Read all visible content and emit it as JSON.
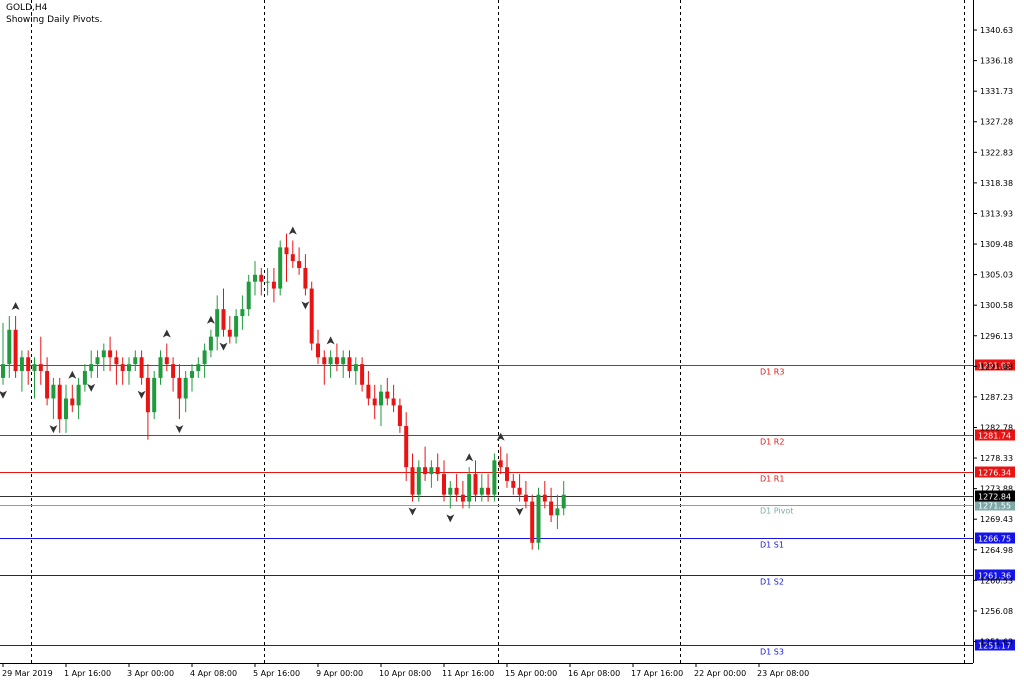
{
  "header": {
    "symbol_line": "GOLD,H4",
    "info_line": "Showing Daily Pivots."
  },
  "colors": {
    "bull": "#1f9a3c",
    "bear": "#e81414",
    "resistance": "#e81414",
    "support": "#1414e8",
    "pivot": "#7fa9a9",
    "price_line": "#333333",
    "grid": "#000000",
    "axis_text": "#000000"
  },
  "chart_data": {
    "type": "candlestick",
    "title": "",
    "symbol": "GOLD,H4",
    "ylim": [
      1248.5,
      1345.0
    ],
    "y_ticks": [
      "1340.63",
      "1336.18",
      "1331.73",
      "1327.28",
      "1322.83",
      "1318.38",
      "1313.93",
      "1309.48",
      "1305.03",
      "1300.58",
      "1296.13",
      "1291.68",
      "1287.23",
      "1282.78",
      "1278.33",
      "1273.88",
      "1269.43",
      "1264.98",
      "1260.53",
      "1256.08",
      "1251.63"
    ],
    "x_labels": [
      {
        "label": "29 Mar 2019",
        "bar": 0
      },
      {
        "label": "1 Apr 16:00",
        "bar": 10
      },
      {
        "label": "3 Apr 00:00",
        "bar": 20
      },
      {
        "label": "4 Apr 08:00",
        "bar": 30
      },
      {
        "label": "5 Apr 16:00",
        "bar": 40
      },
      {
        "label": "9 Apr 00:00",
        "bar": 50
      },
      {
        "label": "10 Apr 08:00",
        "bar": 60
      },
      {
        "label": "11 Apr 16:00",
        "bar": 70
      },
      {
        "label": "15 Apr 00:00",
        "bar": 80
      },
      {
        "label": "16 Apr 08:00",
        "bar": 90
      },
      {
        "label": "17 Apr 16:00",
        "bar": 100
      },
      {
        "label": "22 Apr 00:00",
        "bar": 110
      },
      {
        "label": "23 Apr 08:00",
        "bar": 120
      }
    ],
    "day_separators": [
      4.5,
      41.5,
      78.5,
      107.5,
      152.5
    ],
    "pivot_levels": [
      {
        "name": "D1 R3",
        "value": 1291.93,
        "label": "1291.93",
        "kind": "resistance"
      },
      {
        "name": "D1 R2",
        "value": 1281.74,
        "label": "1281.74",
        "kind": "resistance"
      },
      {
        "name": "D1 R1",
        "value": 1276.34,
        "label": "1276.34",
        "kind": "resistance"
      },
      {
        "name": "D1 Pivot",
        "value": 1271.55,
        "label": "1271.55",
        "kind": "pivot"
      },
      {
        "name": "D1 S1",
        "value": 1266.75,
        "label": "1266.75",
        "kind": "support"
      },
      {
        "name": "D1 S2",
        "value": 1261.36,
        "label": "1261.36",
        "kind": "support"
      },
      {
        "name": "D1 S3",
        "value": 1251.17,
        "label": "1251.17",
        "kind": "support"
      }
    ],
    "current_price": {
      "value": 1272.84,
      "label": "1272.84"
    },
    "candles": [
      [
        1290,
        1298,
        1289,
        1292
      ],
      [
        1292,
        1299,
        1290,
        1297
      ],
      [
        1297,
        1299,
        1290,
        1291
      ],
      [
        1291,
        1294,
        1288,
        1293
      ],
      [
        1293,
        1294,
        1289,
        1291
      ],
      [
        1291,
        1293,
        1287,
        1292
      ],
      [
        1292,
        1296,
        1289,
        1291
      ],
      [
        1291,
        1293,
        1286,
        1287
      ],
      [
        1287,
        1290,
        1284,
        1289
      ],
      [
        1289,
        1290,
        1282,
        1284
      ],
      [
        1284,
        1289,
        1282,
        1287
      ],
      [
        1287,
        1289,
        1285,
        1286
      ],
      [
        1286,
        1290,
        1284,
        1289
      ],
      [
        1289,
        1292,
        1288,
        1291
      ],
      [
        1291,
        1294,
        1290,
        1292
      ],
      [
        1292,
        1294,
        1290,
        1293
      ],
      [
        1293,
        1295,
        1291,
        1294
      ],
      [
        1294,
        1296,
        1291,
        1293
      ],
      [
        1293,
        1294,
        1289,
        1292
      ],
      [
        1292,
        1293,
        1289,
        1291
      ],
      [
        1291,
        1293,
        1289,
        1292
      ],
      [
        1292,
        1294,
        1291,
        1293
      ],
      [
        1293,
        1294,
        1289,
        1290
      ],
      [
        1290,
        1292,
        1281,
        1285
      ],
      [
        1285,
        1291,
        1284,
        1290
      ],
      [
        1290,
        1294,
        1289,
        1293
      ],
      [
        1293,
        1295,
        1291,
        1292
      ],
      [
        1292,
        1293,
        1288,
        1290
      ],
      [
        1290,
        1292,
        1284,
        1287
      ],
      [
        1287,
        1291,
        1285,
        1290
      ],
      [
        1290,
        1292,
        1288,
        1291
      ],
      [
        1291,
        1293,
        1290,
        1292
      ],
      [
        1292,
        1295,
        1290,
        1294
      ],
      [
        1294,
        1297,
        1293,
        1296
      ],
      [
        1296,
        1302,
        1294,
        1300
      ],
      [
        1300,
        1303,
        1296,
        1297
      ],
      [
        1297,
        1299,
        1295,
        1296
      ],
      [
        1296,
        1300,
        1295,
        1299
      ],
      [
        1299,
        1302,
        1297,
        1300
      ],
      [
        1300,
        1305,
        1299,
        1304
      ],
      [
        1304,
        1307,
        1302,
        1305
      ],
      [
        1305,
        1306,
        1302,
        1304
      ],
      [
        1304,
        1306,
        1302,
        1304
      ],
      [
        1304,
        1306,
        1301,
        1303
      ],
      [
        1303,
        1310,
        1302,
        1309
      ],
      [
        1309,
        1311,
        1304,
        1308
      ],
      [
        1308,
        1310,
        1306,
        1307
      ],
      [
        1307,
        1309,
        1305,
        1306
      ],
      [
        1306,
        1308,
        1302,
        1303
      ],
      [
        1303,
        1304,
        1294,
        1295
      ],
      [
        1295,
        1297,
        1292,
        1293
      ],
      [
        1293,
        1294,
        1289,
        1292
      ],
      [
        1292,
        1294,
        1290,
        1293
      ],
      [
        1293,
        1295,
        1291,
        1292
      ],
      [
        1292,
        1294,
        1290,
        1293
      ],
      [
        1293,
        1294,
        1290,
        1291
      ],
      [
        1291,
        1293,
        1289,
        1292
      ],
      [
        1292,
        1293,
        1288,
        1289
      ],
      [
        1289,
        1291,
        1286,
        1287
      ],
      [
        1287,
        1289,
        1284,
        1286
      ],
      [
        1286,
        1289,
        1283,
        1288
      ],
      [
        1288,
        1290,
        1286,
        1287
      ],
      [
        1287,
        1289,
        1285,
        1286
      ],
      [
        1286,
        1287,
        1282,
        1283
      ],
      [
        1283,
        1285,
        1275,
        1277
      ],
      [
        1277,
        1279,
        1272,
        1273
      ],
      [
        1273,
        1278,
        1272,
        1277
      ],
      [
        1277,
        1280,
        1275,
        1276
      ],
      [
        1276,
        1278,
        1274,
        1277
      ],
      [
        1277,
        1279,
        1275,
        1276
      ],
      [
        1276,
        1278,
        1272,
        1273
      ],
      [
        1273,
        1275,
        1271,
        1274
      ],
      [
        1274,
        1276,
        1272,
        1273
      ],
      [
        1273,
        1275,
        1271,
        1272
      ],
      [
        1272,
        1277,
        1271,
        1276
      ],
      [
        1276,
        1278,
        1272,
        1273
      ],
      [
        1273,
        1276,
        1272,
        1274
      ],
      [
        1274,
        1276,
        1272,
        1273
      ],
      [
        1273,
        1279,
        1272,
        1278
      ],
      [
        1278,
        1280,
        1276,
        1277
      ],
      [
        1277,
        1279,
        1274,
        1275
      ],
      [
        1275,
        1276,
        1273,
        1274
      ],
      [
        1274,
        1276,
        1272,
        1273
      ],
      [
        1273,
        1275,
        1271,
        1272
      ],
      [
        1272,
        1273,
        1265,
        1266
      ],
      [
        1266,
        1274,
        1265,
        1273
      ],
      [
        1273,
        1275,
        1271,
        1272
      ],
      [
        1272,
        1274,
        1269,
        1270
      ],
      [
        1270,
        1273,
        1268,
        1271
      ],
      [
        1271,
        1275,
        1270,
        1273
      ]
    ],
    "up_arrows_at_bars": [
      2,
      11,
      26,
      33,
      46,
      52,
      74,
      79,
      93,
      103,
      111,
      115
    ],
    "down_arrows_at_bars": [
      0,
      8,
      14,
      22,
      28,
      35,
      48,
      65,
      71,
      82,
      90,
      105,
      120
    ]
  }
}
